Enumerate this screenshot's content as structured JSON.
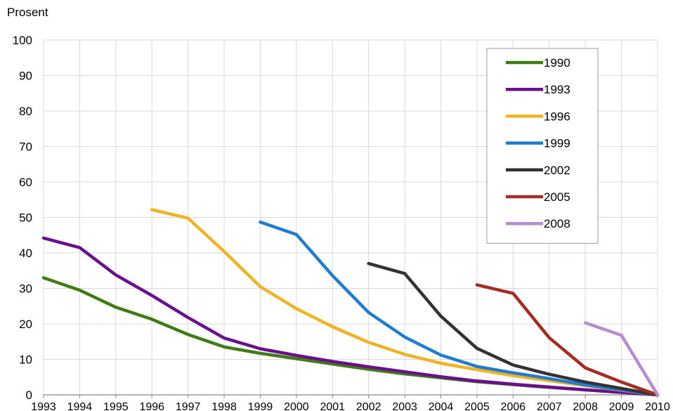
{
  "chart_data": {
    "type": "line",
    "ylabel": "Prosent",
    "xlabel": "",
    "title": "",
    "x": [
      1993,
      1994,
      1995,
      1996,
      1997,
      1998,
      1999,
      2000,
      2001,
      2002,
      2003,
      2004,
      2005,
      2006,
      2007,
      2008,
      2009,
      2010
    ],
    "xlim": [
      1993,
      2010
    ],
    "ylim": [
      0,
      100
    ],
    "yticks": [
      0,
      10,
      20,
      30,
      40,
      50,
      60,
      70,
      80,
      90,
      100
    ],
    "grid": true,
    "legend_position": "top-right",
    "series": [
      {
        "name": "1990",
        "color": "#3f7d14",
        "x": [
          1993,
          1994,
          1995,
          1996,
          1997,
          1998,
          1999,
          2000,
          2001,
          2002,
          2003,
          2004,
          2005,
          2006,
          2007,
          2008,
          2009,
          2010
        ],
        "values": [
          33,
          29.5,
          24.7,
          21.3,
          17,
          13.5,
          11.7,
          10.2,
          8.7,
          7.2,
          5.9,
          4.8,
          3.7,
          2.9,
          2.1,
          1.4,
          0.7,
          0
        ]
      },
      {
        "name": "1993",
        "color": "#6a0f8e",
        "x": [
          1993,
          1994,
          1995,
          1996,
          1997,
          1998,
          1999,
          2000,
          2001,
          2002,
          2003,
          2004,
          2005,
          2006,
          2007,
          2008,
          2009,
          2010
        ],
        "values": [
          44.2,
          41.5,
          33.8,
          28,
          21.8,
          16,
          13,
          11.1,
          9.4,
          7.9,
          6.5,
          5.1,
          3.9,
          3,
          2.2,
          1.4,
          0.7,
          0
        ]
      },
      {
        "name": "1996",
        "color": "#f0b323",
        "x": [
          1996,
          1997,
          1998,
          1999,
          2000,
          2001,
          2002,
          2003,
          2004,
          2005,
          2006,
          2007,
          2008,
          2009,
          2010
        ],
        "values": [
          52.2,
          49.8,
          40.4,
          30.5,
          24.3,
          19.2,
          14.8,
          11.4,
          8.9,
          7.1,
          5.4,
          4,
          2.6,
          1.3,
          0
        ]
      },
      {
        "name": "1999",
        "color": "#1e7dd3",
        "x": [
          1999,
          2000,
          2001,
          2002,
          2003,
          2004,
          2005,
          2006,
          2007,
          2008,
          2009,
          2010
        ],
        "values": [
          48.7,
          45.2,
          33.6,
          23.2,
          16.3,
          11.2,
          8,
          6.2,
          4.6,
          2.8,
          1.4,
          0
        ]
      },
      {
        "name": "2002",
        "color": "#333333",
        "x": [
          2002,
          2003,
          2004,
          2005,
          2006,
          2007,
          2008,
          2009,
          2010
        ],
        "values": [
          37,
          34.2,
          22.2,
          13.1,
          8.4,
          5.8,
          3.6,
          1.8,
          0
        ]
      },
      {
        "name": "2005",
        "color": "#a62b22",
        "x": [
          2005,
          2006,
          2007,
          2008,
          2009,
          2010
        ],
        "values": [
          31,
          28.6,
          16.1,
          7.6,
          3.6,
          0
        ]
      },
      {
        "name": "2008",
        "color": "#b98bd1",
        "x": [
          2008,
          2009,
          2010
        ],
        "values": [
          20.3,
          16.8,
          0
        ]
      }
    ]
  }
}
